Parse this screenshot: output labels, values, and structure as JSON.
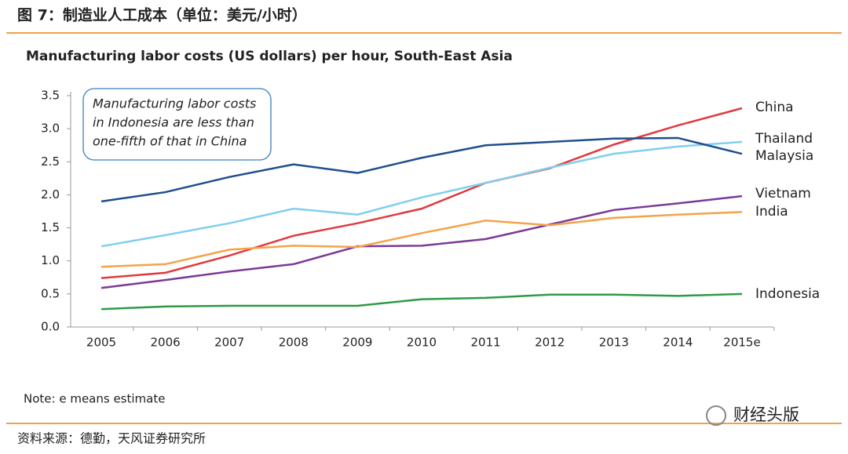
{
  "header": {
    "title": "图 7：制造业人工成本（单位：美元/小时）"
  },
  "chart_data": {
    "type": "line",
    "title": "Manufacturing labor costs (US dollars) per hour, South-East Asia",
    "annotation": [
      "Manufacturing labor costs",
      "in Indonesia are less than",
      "one-fifth of that in China"
    ],
    "categories": [
      "2005",
      "2006",
      "2007",
      "2008",
      "2009",
      "2010",
      "2011",
      "2012",
      "2013",
      "2014",
      "2015e"
    ],
    "series": [
      {
        "name": "China",
        "color": "#e03a3e",
        "values": [
          0.74,
          0.82,
          1.08,
          1.38,
          1.57,
          1.79,
          2.18,
          2.4,
          2.76,
          3.05,
          3.31
        ]
      },
      {
        "name": "Thailand",
        "color": "#7fcfee",
        "values": [
          1.22,
          1.39,
          1.57,
          1.79,
          1.7,
          1.96,
          2.18,
          2.41,
          2.62,
          2.73,
          2.8
        ]
      },
      {
        "name": "Malaysia",
        "color": "#1f4e8c",
        "values": [
          1.9,
          2.04,
          2.27,
          2.46,
          2.33,
          2.56,
          2.75,
          2.8,
          2.85,
          2.86,
          2.62
        ]
      },
      {
        "name": "Vietnam",
        "color": "#7b3a96",
        "values": [
          0.59,
          0.71,
          0.84,
          0.95,
          1.22,
          1.23,
          1.33,
          1.55,
          1.77,
          1.87,
          1.98
        ]
      },
      {
        "name": "India",
        "color": "#f4a349",
        "values": [
          0.91,
          0.95,
          1.17,
          1.23,
          1.21,
          1.42,
          1.61,
          1.54,
          1.65,
          1.7,
          1.74
        ]
      },
      {
        "name": "Indonesia",
        "color": "#2e9a48",
        "values": [
          0.27,
          0.31,
          0.32,
          0.32,
          0.32,
          0.42,
          0.44,
          0.49,
          0.49,
          0.47,
          0.5
        ]
      }
    ],
    "ylim": [
      0,
      3.5
    ],
    "yticks": [
      {
        "value": 0,
        "label": "0.0"
      },
      0.5,
      {
        "value": 1,
        "label": "1.0"
      },
      1.5,
      {
        "value": 2,
        "label": "2.0"
      },
      2.5,
      {
        "value": 3,
        "label": "3.0"
      },
      3.5
    ],
    "grid": false
  },
  "note": "Note: e means estimate",
  "source": "资料来源：德勤，天风证券研究所",
  "watermark": "财经头版"
}
